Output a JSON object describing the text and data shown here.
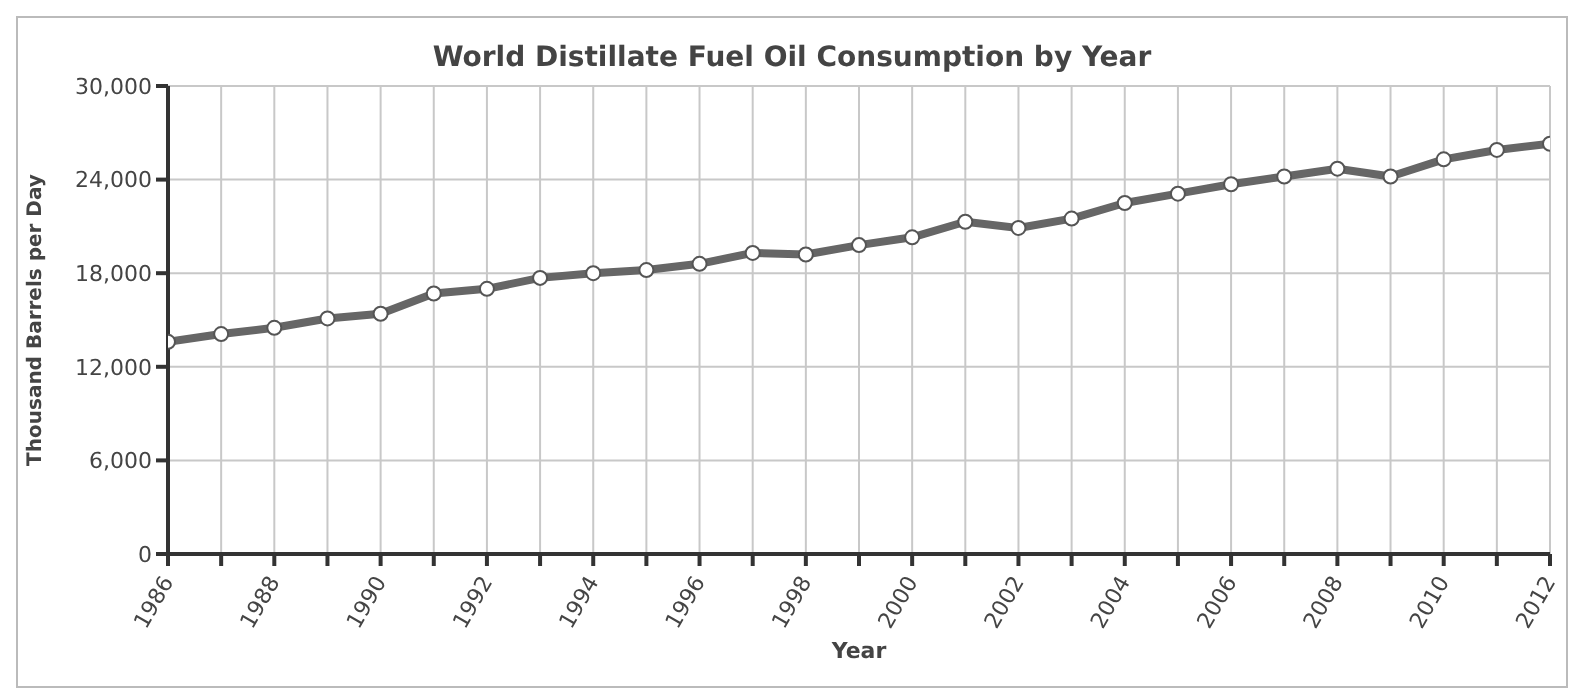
{
  "chart_data": {
    "type": "line",
    "title": "World Distillate Fuel Oil Consumption by Year",
    "xlabel": "Year",
    "ylabel": "Thousand Barrels per Day",
    "x": [
      1986,
      1987,
      1988,
      1989,
      1990,
      1991,
      1992,
      1993,
      1994,
      1995,
      1996,
      1997,
      1998,
      1999,
      2000,
      2001,
      2002,
      2003,
      2004,
      2005,
      2006,
      2007,
      2008,
      2009,
      2010,
      2011,
      2012
    ],
    "series": [
      {
        "color": "#666666",
        "values": [
          13600,
          14100,
          14500,
          15100,
          15400,
          16700,
          17000,
          17700,
          18000,
          18200,
          18600,
          19300,
          19200,
          19800,
          20300,
          21300,
          20900,
          21500,
          22500,
          23100,
          23700,
          24200,
          24700,
          24200,
          25300,
          25900,
          26300
        ]
      }
    ],
    "xlim": [
      1986,
      2012
    ],
    "xticks": [
      1986,
      {
        "value": 1987,
        "label": null
      },
      1988,
      {
        "value": 1989,
        "label": null
      },
      1990,
      {
        "value": 1991,
        "label": null
      },
      1992,
      {
        "value": 1993,
        "label": null
      },
      1994,
      {
        "value": 1995,
        "label": null
      },
      1996,
      {
        "value": 1997,
        "label": null
      },
      1998,
      {
        "value": 1999,
        "label": null
      },
      2000,
      {
        "value": 2001,
        "label": null
      },
      2002,
      {
        "value": 2003,
        "label": null
      },
      2004,
      {
        "value": 2005,
        "label": null
      },
      2006,
      {
        "value": 2007,
        "label": null
      },
      2008,
      {
        "value": 2009,
        "label": null
      },
      2010,
      {
        "value": 2011,
        "label": null
      },
      2012
    ],
    "ylim": [
      0,
      30000
    ],
    "yticks": [
      0,
      {
        "value": 6000,
        "label": "6,000"
      },
      {
        "value": 12000,
        "label": "12,000"
      },
      {
        "value": 18000,
        "label": "18,000"
      },
      {
        "value": 24000,
        "label": "24,000"
      },
      {
        "value": 30000,
        "label": "30,000"
      }
    ],
    "grid": true,
    "legend": false,
    "marker": "circle",
    "line_style": "solid"
  }
}
